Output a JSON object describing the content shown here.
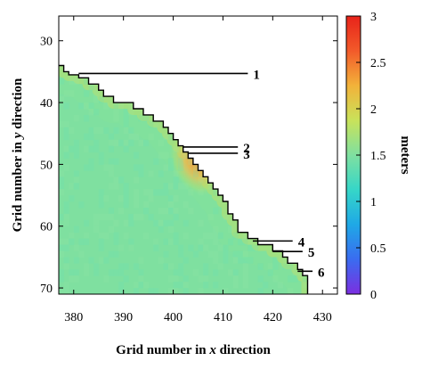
{
  "chart_data": {
    "type": "heatmap",
    "xlabel_parts": [
      "Grid number in ",
      "x",
      " direction"
    ],
    "ylabel_parts": [
      "Grid number in ",
      "y",
      " direction"
    ],
    "xlim": [
      377,
      433
    ],
    "ylim": [
      71,
      26
    ],
    "x_ticks": [
      380,
      390,
      400,
      410,
      420,
      430
    ],
    "y_ticks": [
      30,
      40,
      50,
      60,
      70
    ],
    "colorbar": {
      "label": "meters",
      "range": [
        0,
        3
      ],
      "ticks": [
        "0",
        "0.5",
        "1",
        "1.5",
        "2",
        "2.5",
        "3"
      ],
      "colors": [
        "#7b2fe0",
        "#3a6cf0",
        "#1fa8e6",
        "#36d6c8",
        "#7fe0a0",
        "#c9e25a",
        "#f2b23a",
        "#f25a2a",
        "#e8231a"
      ]
    },
    "typical_value_m": 1.5,
    "peak_value_m": 2.3,
    "peak_location": [
      404,
      49
    ],
    "boundary": [
      [
        377,
        34
      ],
      [
        378,
        34
      ],
      [
        378,
        35
      ],
      [
        379,
        35
      ],
      [
        379,
        35.5
      ],
      [
        381,
        35.5
      ],
      [
        381,
        36
      ],
      [
        383,
        36
      ],
      [
        383,
        37
      ],
      [
        385,
        37
      ],
      [
        385,
        38
      ],
      [
        386,
        38
      ],
      [
        386,
        39
      ],
      [
        388,
        39
      ],
      [
        388,
        40
      ],
      [
        392,
        40
      ],
      [
        392,
        41
      ],
      [
        394,
        41
      ],
      [
        394,
        42
      ],
      [
        396,
        42
      ],
      [
        396,
        43
      ],
      [
        398,
        43
      ],
      [
        398,
        44
      ],
      [
        399,
        44
      ],
      [
        399,
        45
      ],
      [
        400,
        45
      ],
      [
        400,
        46
      ],
      [
        401,
        46
      ],
      [
        401,
        47
      ],
      [
        402,
        47
      ],
      [
        402,
        48
      ],
      [
        403,
        48
      ],
      [
        403,
        49
      ],
      [
        404,
        49
      ],
      [
        404,
        50
      ],
      [
        405,
        50
      ],
      [
        405,
        51
      ],
      [
        406,
        51
      ],
      [
        406,
        52
      ],
      [
        407,
        52
      ],
      [
        407,
        53
      ],
      [
        408,
        53
      ],
      [
        408,
        54
      ],
      [
        409,
        54
      ],
      [
        409,
        55
      ],
      [
        410,
        55
      ],
      [
        410,
        56
      ],
      [
        411,
        56
      ],
      [
        411,
        58
      ],
      [
        412,
        58
      ],
      [
        412,
        59
      ],
      [
        413,
        59
      ],
      [
        413,
        61
      ],
      [
        415,
        61
      ],
      [
        415,
        62
      ],
      [
        417,
        62
      ],
      [
        417,
        63
      ],
      [
        420,
        63
      ],
      [
        420,
        64
      ],
      [
        422,
        64
      ],
      [
        422,
        65
      ],
      [
        423,
        65
      ],
      [
        423,
        66
      ],
      [
        425,
        66
      ],
      [
        425,
        67
      ],
      [
        426,
        67
      ],
      [
        426,
        68
      ],
      [
        427,
        68
      ],
      [
        427,
        71
      ]
    ],
    "annotations": [
      {
        "label": "1",
        "x": 381,
        "y": 35.3,
        "text_x": 415,
        "text_y": 35.3
      },
      {
        "label": "2",
        "x": 402,
        "y": 47.2,
        "text_x": 413,
        "text_y": 47.2
      },
      {
        "label": "3",
        "x": 403,
        "y": 48.2,
        "text_x": 413,
        "text_y": 48.2
      },
      {
        "label": "4",
        "x": 416,
        "y": 62.4,
        "text_x": 424,
        "text_y": 62.4
      },
      {
        "label": "5",
        "x": 420,
        "y": 64.1,
        "text_x": 426,
        "text_y": 64.1
      },
      {
        "label": "6",
        "x": 425,
        "y": 67.3,
        "text_x": 428,
        "text_y": 67.3
      }
    ]
  }
}
